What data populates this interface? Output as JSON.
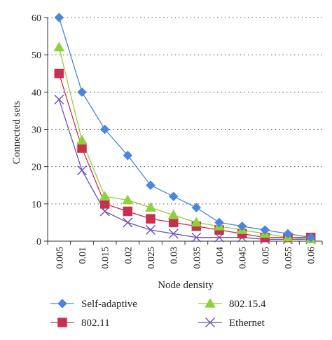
{
  "chart_data": {
    "type": "line",
    "title": "",
    "xlabel": "Node density",
    "ylabel": "Connected sets",
    "x": [
      "0.005",
      "0.01",
      "0.015",
      "0.02",
      "0.025",
      "0.03",
      "0.035",
      "0.04",
      "0.045",
      "0.05",
      "0.055",
      "0.06"
    ],
    "ylim": [
      0,
      60
    ],
    "yticks": [
      0,
      10,
      20,
      30,
      40,
      50,
      60
    ],
    "grid": "horizontal-dotted",
    "legend": "bottom",
    "series": [
      {
        "name": "Self-adaptive",
        "marker": "diamond",
        "color": "#4a86d9",
        "values": [
          60,
          40,
          30,
          23,
          15,
          12,
          9,
          5,
          4,
          3,
          2,
          1
        ]
      },
      {
        "name": "802.15.4",
        "marker": "triangle",
        "color": "#8fd13b",
        "values": [
          52,
          27,
          12,
          11,
          9,
          7,
          5,
          4,
          3,
          2,
          1,
          0.5
        ]
      },
      {
        "name": "802.11",
        "marker": "square",
        "color": "#c9304f",
        "values": [
          45,
          25,
          10,
          8,
          6,
          5,
          4,
          3,
          2,
          1,
          1,
          1
        ]
      },
      {
        "name": "Ethernet",
        "marker": "x",
        "color": "#6b4fb8",
        "values": [
          38,
          19,
          8,
          5,
          3,
          2,
          1,
          1,
          1,
          0.5,
          0.5,
          0.5
        ]
      }
    ]
  }
}
